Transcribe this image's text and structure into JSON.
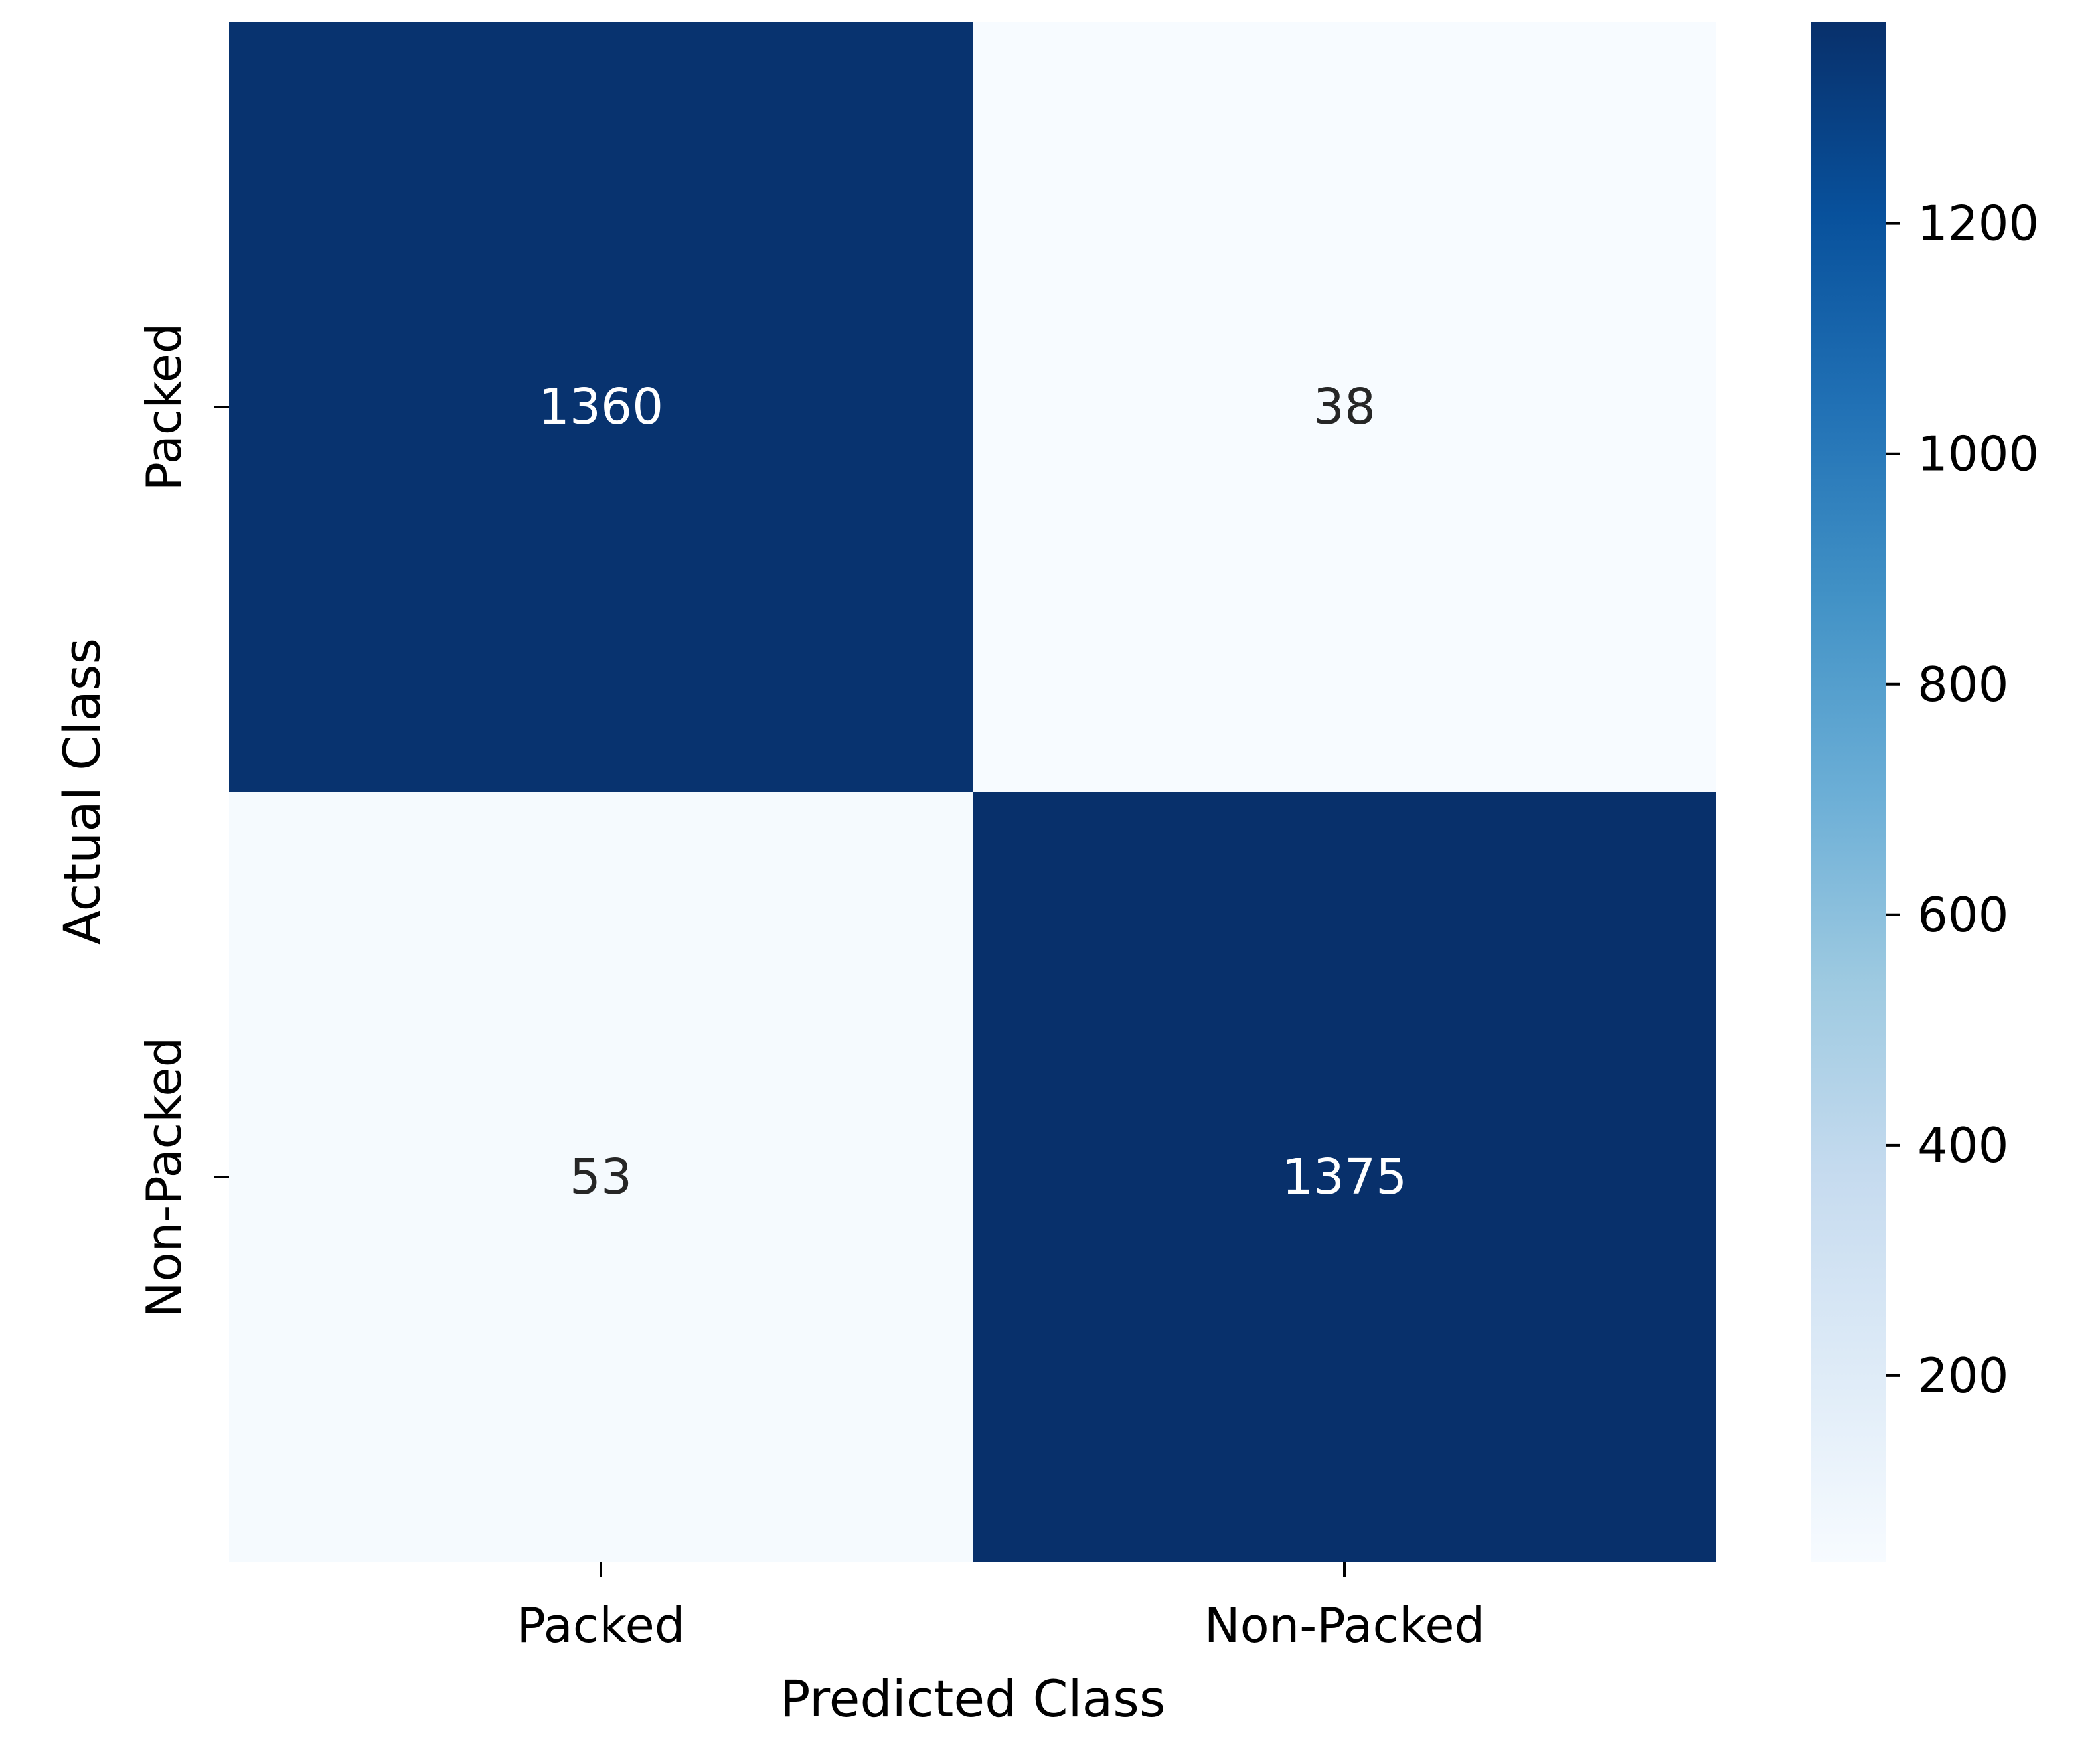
{
  "chart_data": {
    "type": "heatmap",
    "title": "",
    "xlabel": "Predicted Class",
    "ylabel": "Actual Class",
    "x_categories": [
      "Packed",
      "Non-Packed"
    ],
    "y_categories": [
      "Packed",
      "Non-Packed"
    ],
    "values": [
      [
        1360,
        38
      ],
      [
        53,
        1375
      ]
    ],
    "value_labels": [
      [
        "1360",
        "38"
      ],
      [
        "53",
        "1375"
      ]
    ],
    "colormap": "Blues",
    "colorbar": {
      "range": [
        38,
        1375
      ],
      "ticks": [
        200,
        400,
        600,
        800,
        1000,
        1200
      ],
      "tick_labels": [
        "200",
        "400",
        "600",
        "800",
        "1000",
        "1200"
      ],
      "position": "right"
    },
    "colors": {
      "low": "#f7fbff",
      "high": "#08306b",
      "text_on_dark": "#ffffff",
      "text_on_light": "#262626"
    }
  }
}
